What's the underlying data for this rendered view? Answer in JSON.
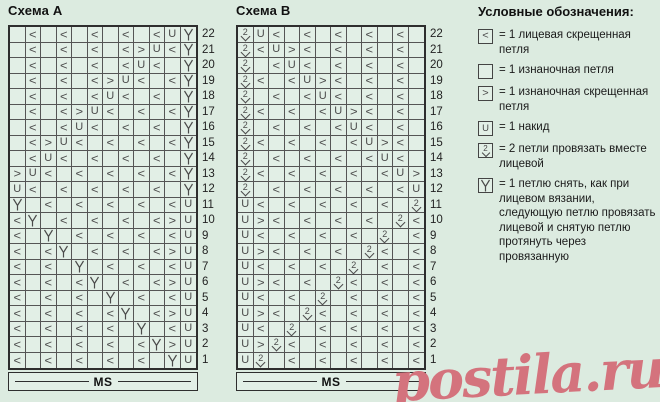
{
  "page": {
    "background_color": "#dcebe0",
    "watermark_text": "postila.ru",
    "watermark_color": "#d4737d"
  },
  "symbols": {
    "<": "knit-twisted-stitch-icon",
    ">": "purl-twisted-stitch-icon",
    "U": "yarn-over-icon",
    "2": "knit-two-together-icon",
    "V": "slip-psso-icon",
    ".": "purl-empty-cell"
  },
  "charts": [
    {
      "title": "Схема A",
      "ms_label": "MS",
      "columns": 12,
      "row_numbers": [
        22,
        21,
        20,
        19,
        18,
        17,
        16,
        15,
        14,
        13,
        12,
        11,
        10,
        9,
        8,
        7,
        6,
        5,
        4,
        3,
        2,
        1
      ],
      "rows": [
        ".<.<.<.<.<UV",
        ".<.<.<.<>U<V",
        ".<.<.<.<U<.V",
        ".<.<.<>U<.<V",
        ".<.<.<U<.<.V",
        ".<.<>U<.<.<V",
        ".<.<U<.<.<.V",
        ".<>U<.<.<.<V",
        ".<U<.<.<.<.V",
        ">U<.<.<.<.<V",
        "U<.<.<.<.<.V",
        "V.<.<.<.<.<U",
        "<V.<.<.<.<>U",
        "<.V.<.<.<.<U",
        "<.<V.<.<.<>U",
        "<.<.V.<.<.<U",
        "<.<.<V.<.<>U",
        "<.<.<.V.<.<U",
        "<.<.<.<V.<>U",
        "<.<.<.<.V.<U",
        "<.<.<.<.<V>U",
        "<.<.<.<.<.VU"
      ]
    },
    {
      "title": "Схема B",
      "ms_label": "MS",
      "columns": 12,
      "row_numbers": [
        22,
        21,
        20,
        19,
        18,
        17,
        16,
        15,
        14,
        13,
        12,
        11,
        10,
        9,
        8,
        7,
        6,
        5,
        4,
        3,
        2,
        1
      ],
      "rows": [
        "2U<.<.<.<.<.",
        "2<U><.<.<.<.",
        "2.<U<.<.<.<.",
        "2<.<U><.<.<.",
        "2.<.<U<.<.<.",
        "2<.<.<U><.<.",
        "2.<.<.<U<.<.",
        "2<.<.<.<U><.",
        "2.<.<.<.<U<.",
        "2<.<.<.<.<U>",
        "2.<.<.<.<.<U",
        "U<.<.<.<.<.2",
        "U><.<.<.<.2<",
        "U<.<.<.<.2.<",
        "U><.<.<.2<.<",
        "U<.<.<.2.<.<",
        "U><.<.2<.<.<",
        "U<.<.2.<.<.<",
        "U><.2<.<.<.<",
        "U<.2.<.<.<.<",
        "U>2<.<.<.<.<",
        "U2.<.<.<.<.<"
      ]
    }
  ],
  "legend": {
    "title": "Условные обозначения:",
    "items": [
      {
        "symbol": "<",
        "label": "= 1 лицевая скрещенная петля"
      },
      {
        "symbol": ".",
        "label": "= 1 изнаночная петля"
      },
      {
        "symbol": ">",
        "label": "= 1 изнаночная скрещенная петля"
      },
      {
        "symbol": "U",
        "label": "= 1 накид"
      },
      {
        "symbol": "2",
        "label": "= 2 петли провязать вместе лицевой"
      },
      {
        "symbol": "V",
        "label": "= 1 петлю снять, как при лицевом вязании, следующую петлю провязать лицевой и снятую петлю протянуть через провязанную"
      }
    ]
  }
}
